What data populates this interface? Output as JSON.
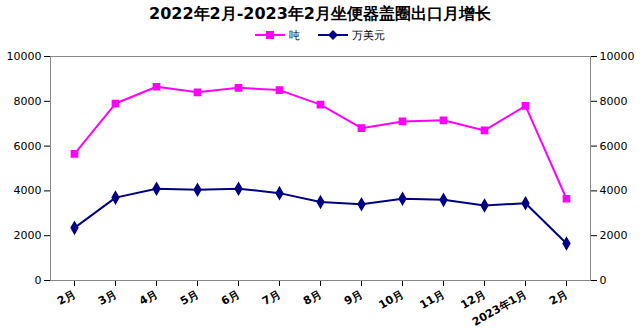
{
  "chart_data": {
    "type": "line",
    "title": "2022年2月-2023年2月坐便器盖圈出口月增长",
    "categories": [
      "2月",
      "3月",
      "4月",
      "5月",
      "6月",
      "7月",
      "8月",
      "9月",
      "10月",
      "11月",
      "12月",
      "2023年1月",
      "2月"
    ],
    "series": [
      {
        "name": "吨",
        "color": "#ff00ff",
        "marker": "square",
        "values": [
          5650,
          7900,
          8650,
          8400,
          8600,
          8500,
          7850,
          6800,
          7100,
          7150,
          6700,
          7800,
          3650
        ]
      },
      {
        "name": "万美元",
        "color": "#000080",
        "marker": "diamond",
        "axis": "y2",
        "values": [
          2350,
          3700,
          4100,
          4050,
          4100,
          3900,
          3500,
          3400,
          3650,
          3600,
          3350,
          3450,
          1650
        ]
      }
    ],
    "ylim": [
      0,
      10000
    ],
    "yticks": [
      0,
      2000,
      4000,
      6000,
      8000,
      10000
    ],
    "y2lim": [
      0,
      10000
    ],
    "y2ticks": [
      0,
      2000,
      4000,
      6000,
      8000,
      10000
    ],
    "grid": false,
    "legend": "top"
  }
}
